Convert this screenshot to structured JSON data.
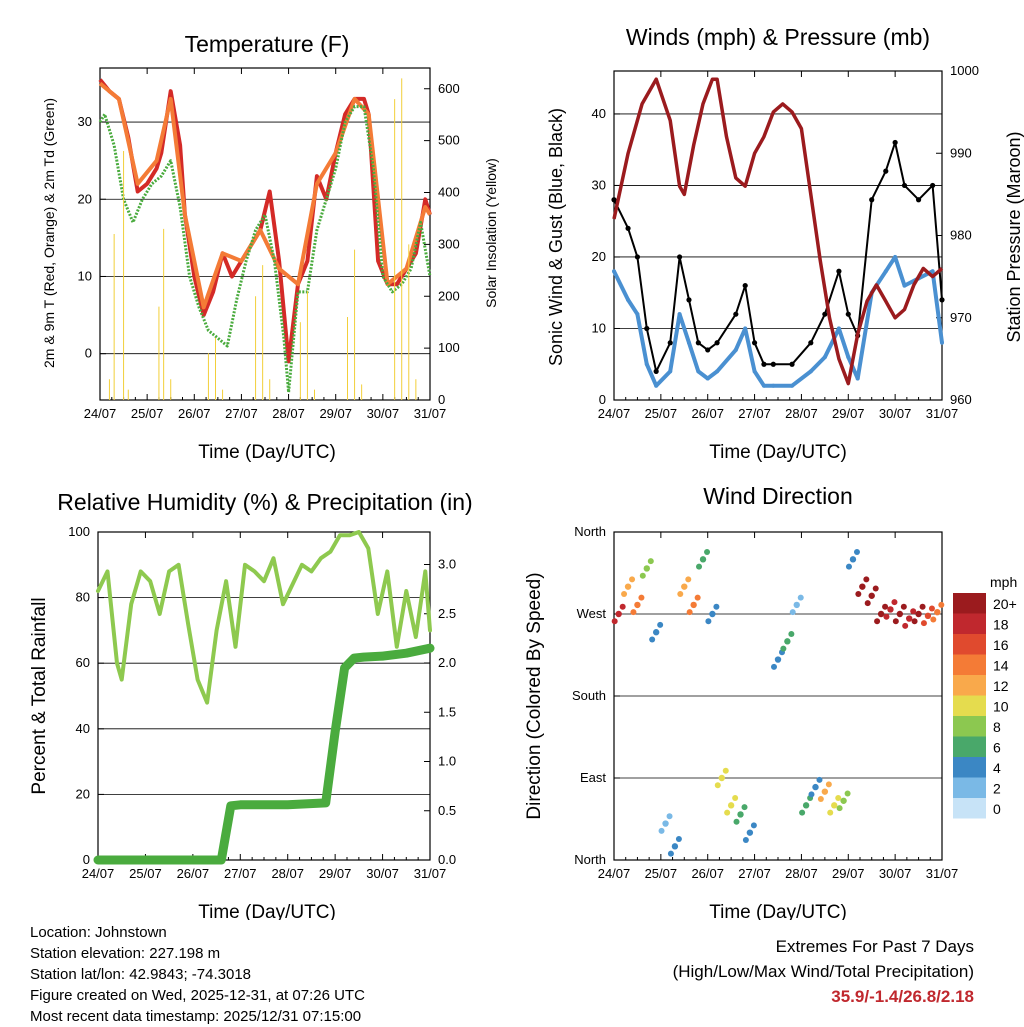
{
  "time_ticks": [
    "24/07",
    "25/07",
    "26/07",
    "27/07",
    "28/07",
    "29/07",
    "30/07",
    "31/07"
  ],
  "x_label": "Time (Day/UTC)",
  "chart_data": [
    {
      "type": "line",
      "title": "Temperature (F)",
      "ylabel": "2m & 9m T (Red, Orange) & 2m Td (Green)",
      "y2label": "Solar Insolation (Yellow)",
      "ylim": [
        -6,
        37
      ],
      "y2lim": [
        0,
        640
      ],
      "yticks": [
        0,
        10,
        20,
        30
      ],
      "y2ticks": [
        0,
        100,
        200,
        300,
        400,
        500,
        600
      ],
      "series": [
        {
          "name": "2m T",
          "color": "#d42a27",
          "x": [
            0,
            0.2,
            0.4,
            0.6,
            0.8,
            1.0,
            1.2,
            1.3,
            1.5,
            1.7,
            1.8,
            2.0,
            2.2,
            2.4,
            2.6,
            2.8,
            3.0,
            3.2,
            3.4,
            3.6,
            3.8,
            4.0,
            4.2,
            4.4,
            4.6,
            4.8,
            5.0,
            5.2,
            5.4,
            5.6,
            5.7,
            5.9,
            6.1,
            6.3,
            6.5,
            6.7,
            6.9,
            7.0
          ],
          "y": [
            35.5,
            34,
            33,
            28,
            21,
            22,
            24,
            26,
            34,
            27,
            18,
            10,
            5,
            8,
            13,
            10,
            12,
            14,
            16,
            21,
            12,
            -1,
            9,
            12,
            23,
            20,
            26,
            31,
            33,
            33,
            31,
            12,
            9,
            9,
            11,
            13,
            20,
            18
          ]
        },
        {
          "name": "9m T",
          "color": "#f47b36",
          "x": [
            0,
            0.4,
            0.8,
            1.2,
            1.5,
            1.8,
            2.2,
            2.6,
            3.0,
            3.4,
            3.8,
            4.2,
            4.6,
            5.0,
            5.4,
            5.7,
            6.1,
            6.5,
            6.9,
            7.0
          ],
          "y": [
            35,
            33,
            22,
            25,
            33,
            18,
            6,
            13,
            12,
            16,
            11,
            9,
            22,
            26,
            33,
            31,
            9,
            11,
            19,
            18
          ]
        },
        {
          "name": "2m Td",
          "color": "#4aab3e",
          "x": [
            0,
            0.1,
            0.3,
            0.5,
            0.7,
            0.9,
            1.1,
            1.3,
            1.5,
            1.7,
            1.9,
            2.1,
            2.3,
            2.5,
            2.7,
            2.9,
            3.1,
            3.3,
            3.5,
            3.7,
            3.9,
            4.0,
            4.2,
            4.4,
            4.6,
            4.8,
            5.0,
            5.2,
            5.4,
            5.6,
            5.8,
            6.0,
            6.2,
            6.4,
            6.6,
            6.8,
            7.0
          ],
          "y": [
            30,
            31,
            27,
            20,
            17,
            20,
            22,
            23,
            25,
            19,
            10,
            6,
            3,
            2,
            1,
            7,
            12,
            16,
            18,
            12,
            2,
            -5,
            8,
            8,
            16,
            20,
            24,
            30,
            32,
            32,
            24,
            10,
            8,
            9,
            11,
            17,
            10
          ]
        },
        {
          "name": "Solar Insolation",
          "color": "#f2cf3a",
          "axis": "y2",
          "x": [
            0.2,
            0.3,
            0.45,
            0.5,
            0.6,
            1.25,
            1.35,
            1.5,
            2.3,
            2.45,
            2.6,
            3.3,
            3.45,
            3.6,
            4.25,
            4.4,
            4.55,
            5.25,
            5.4,
            5.55,
            6.25,
            6.4,
            6.55,
            6.7
          ],
          "y": [
            40,
            320,
            0,
            480,
            20,
            180,
            330,
            40,
            90,
            120,
            20,
            200,
            260,
            40,
            150,
            210,
            20,
            160,
            290,
            30,
            580,
            620,
            300,
            40
          ]
        }
      ]
    },
    {
      "type": "scatter",
      "title": "Winds (mph) & Pressure (mb)",
      "ylabel": "Sonic Wind & Gust (Blue, Black)",
      "y2label": "Station Pressure (Maroon)",
      "ylim": [
        0,
        46
      ],
      "y2lim": [
        960,
        1000
      ],
      "yticks": [
        0,
        10,
        20,
        30,
        40
      ],
      "y2ticks": [
        960,
        970,
        980,
        990,
        1000
      ],
      "series": [
        {
          "name": "Gust",
          "color": "#000000",
          "x": [
            0,
            0.3,
            0.5,
            0.7,
            0.9,
            1.2,
            1.4,
            1.6,
            1.8,
            2.0,
            2.2,
            2.6,
            2.8,
            3.0,
            3.2,
            3.4,
            3.8,
            4.2,
            4.5,
            4.8,
            5.0,
            5.2,
            5.5,
            5.8,
            6.0,
            6.2,
            6.5,
            6.8,
            7.0
          ],
          "y": [
            28,
            24,
            20,
            10,
            4,
            8,
            20,
            14,
            8,
            7,
            8,
            12,
            16,
            8,
            5,
            5,
            5,
            8,
            12,
            18,
            12,
            9,
            28,
            32,
            36,
            30,
            28,
            30,
            14
          ]
        },
        {
          "name": "Wind",
          "color": "#4a90d1",
          "x": [
            0,
            0.3,
            0.5,
            0.7,
            0.9,
            1.2,
            1.4,
            1.6,
            1.8,
            2.0,
            2.2,
            2.6,
            2.8,
            3.0,
            3.2,
            3.4,
            3.8,
            4.2,
            4.5,
            4.8,
            5.0,
            5.2,
            5.5,
            5.8,
            6.0,
            6.2,
            6.5,
            6.8,
            7.0
          ],
          "y": [
            18,
            14,
            12,
            5,
            2,
            4,
            12,
            8,
            4,
            3,
            4,
            7,
            10,
            4,
            2,
            2,
            2,
            4,
            6,
            10,
            6,
            3,
            15,
            18,
            20,
            16,
            17,
            18,
            8
          ]
        },
        {
          "name": "Station Pressure",
          "color": "#9b1b1e",
          "axis": "y2",
          "x": [
            0,
            0.3,
            0.6,
            0.9,
            1.2,
            1.4,
            1.5,
            1.7,
            1.9,
            2.1,
            2.2,
            2.4,
            2.6,
            2.8,
            3.0,
            3.2,
            3.4,
            3.6,
            3.8,
            4.0,
            4.2,
            4.4,
            4.6,
            4.8,
            5.0,
            5.2,
            5.4,
            5.6,
            5.8,
            6.0,
            6.2,
            6.4,
            6.6,
            6.8,
            7.0
          ],
          "y": [
            982,
            990,
            996,
            999,
            994,
            986,
            985,
            991,
            996,
            999,
            999,
            992,
            987,
            986,
            990,
            992,
            995,
            996,
            995,
            993,
            985,
            977,
            970,
            965,
            962,
            968,
            972,
            974,
            972,
            970,
            971,
            974,
            976,
            975,
            976
          ]
        }
      ]
    },
    {
      "type": "line",
      "title": "Relative Humidity (%) & Precipitation (in)",
      "ylabel": "Percent & Total Rainfall",
      "ylim": [
        0,
        100
      ],
      "y2lim": [
        0,
        3.33
      ],
      "yticks": [
        0,
        20,
        40,
        60,
        80,
        100
      ],
      "y2ticks": [
        "0.0",
        "0.5",
        "1.0",
        "1.5",
        "2.0",
        "2.5",
        "3.0"
      ],
      "series": [
        {
          "name": "Relative Humidity",
          "color": "#8ec94f",
          "x": [
            0,
            0.2,
            0.4,
            0.5,
            0.7,
            0.9,
            1.1,
            1.3,
            1.5,
            1.7,
            1.9,
            2.1,
            2.3,
            2.5,
            2.7,
            2.9,
            3.1,
            3.3,
            3.5,
            3.7,
            3.9,
            4.1,
            4.3,
            4.5,
            4.7,
            4.9,
            5.1,
            5.3,
            5.5,
            5.7,
            5.9,
            6.1,
            6.3,
            6.5,
            6.7,
            6.9,
            7.0
          ],
          "y": [
            82,
            88,
            60,
            55,
            78,
            88,
            85,
            75,
            88,
            90,
            72,
            55,
            48,
            70,
            85,
            65,
            90,
            88,
            85,
            92,
            78,
            84,
            90,
            88,
            92,
            94,
            99,
            99,
            100,
            95,
            75,
            88,
            65,
            82,
            68,
            88,
            70
          ]
        },
        {
          "name": "Total Precipitation",
          "color": "#4aab3e",
          "axis": "y2",
          "x": [
            0,
            1.0,
            2.0,
            2.6,
            2.8,
            3.0,
            4.0,
            4.8,
            5.0,
            5.2,
            5.4,
            5.6,
            6.0,
            6.5,
            7.0
          ],
          "y": [
            0,
            0,
            0,
            0,
            0.55,
            0.56,
            0.56,
            0.58,
            1.3,
            1.95,
            2.05,
            2.06,
            2.07,
            2.1,
            2.15
          ]
        }
      ]
    },
    {
      "type": "scatter",
      "title": "Wind Direction",
      "ylabel": "Direction (Colored By Speed)",
      "ylim": [
        0,
        360
      ],
      "y_tick_labels": [
        "North",
        "East",
        "South",
        "West",
        "North"
      ],
      "yticks": [
        0,
        90,
        180,
        270,
        360
      ],
      "legend": {
        "title": "mph",
        "labels": [
          "20+",
          "18",
          "16",
          "14",
          "12",
          "10",
          "8",
          "6",
          "4",
          "2",
          "0"
        ],
        "colors": [
          "#9b1b1e",
          "#c0282e",
          "#e04a2e",
          "#f47b36",
          "#f9a94b",
          "#e5dc4e",
          "#8cc850",
          "#49a86a",
          "#3b87c4",
          "#7ab9e6",
          "#c7e3f7"
        ]
      },
      "series": [
        {
          "name": "direction",
          "x": [
            0.1,
            0.3,
            0.5,
            0.7,
            0.9,
            1.1,
            1.3,
            1.5,
            1.7,
            1.9,
            2.1,
            2.3,
            2.5,
            2.7,
            2.9,
            3.5,
            3.7,
            3.9,
            4.1,
            4.3,
            4.5,
            4.7,
            4.9,
            5.1,
            5.3,
            5.5,
            5.7,
            5.9,
            6.1,
            6.3,
            6.5,
            6.7,
            6.9
          ],
          "y": [
            270,
            300,
            280,
            320,
            250,
            40,
            15,
            300,
            280,
            330,
            270,
            90,
            60,
            50,
            30,
            220,
            240,
            280,
            60,
            80,
            75,
            60,
            65,
            330,
            300,
            290,
            270,
            275,
            270,
            265,
            270,
            268,
            272
          ],
          "speed": [
            18,
            12,
            14,
            8,
            4,
            2,
            4,
            12,
            14,
            6,
            4,
            10,
            10,
            6,
            4,
            4,
            6,
            2,
            6,
            4,
            12,
            10,
            8,
            4,
            20,
            20,
            20,
            18,
            20,
            18,
            20,
            16,
            14
          ]
        }
      ]
    }
  ],
  "footer": {
    "location": "Location: Johnstown",
    "elevation": "Station elevation: 227.198 m",
    "latlon": "Station lat/lon: 42.9843; -74.3018",
    "created": "Figure created on Wed, 2025-12-31, at 07:26 UTC",
    "recent": "Most recent data timestamp: 2025/12/31 07:15:00"
  },
  "extremes": {
    "line1": "Extremes For Past 7 Days",
    "line2": "(High/Low/Max Wind/Total Precipitation)",
    "value": "35.9/-1.4/26.8/2.18"
  }
}
